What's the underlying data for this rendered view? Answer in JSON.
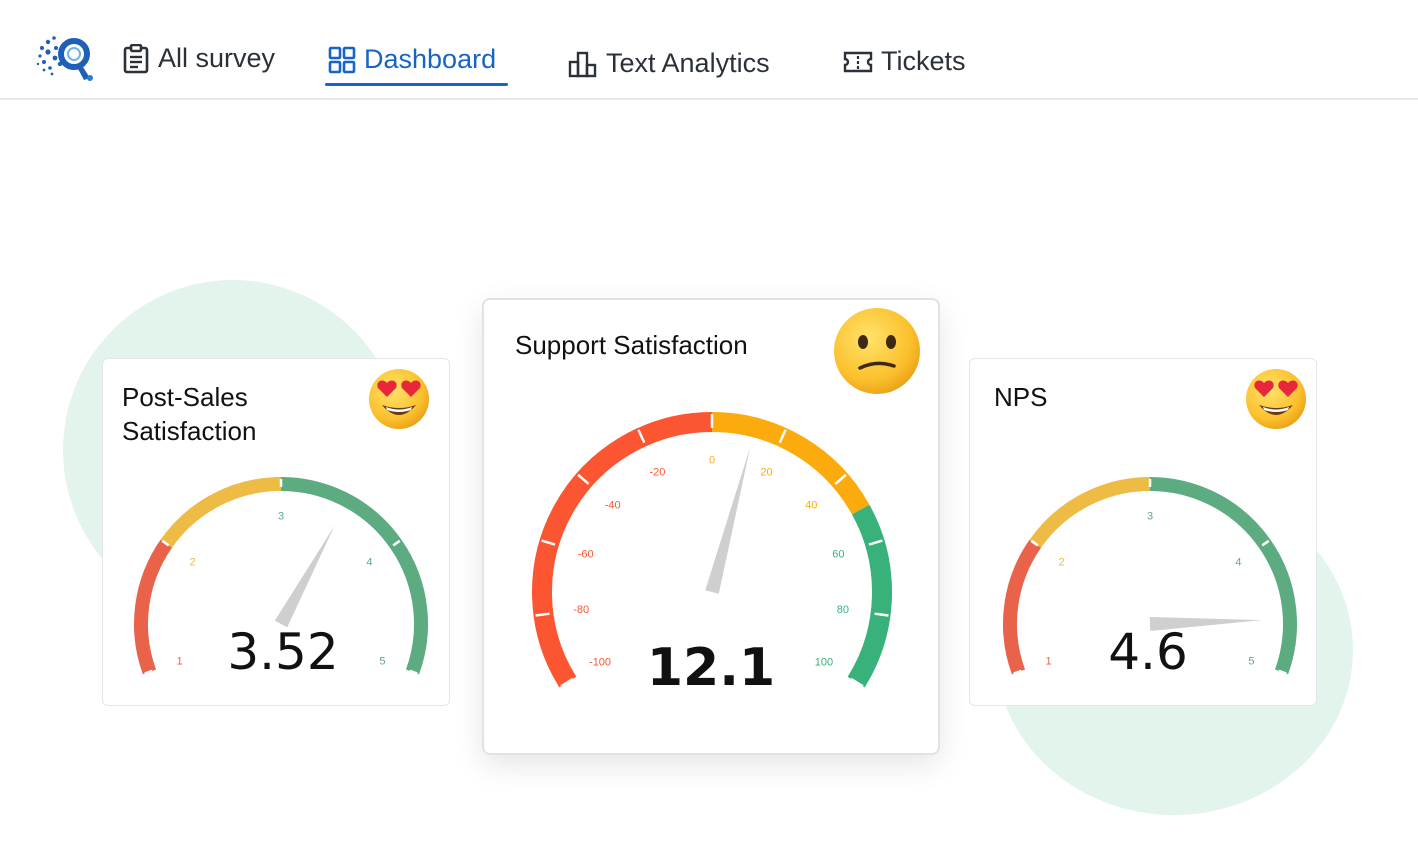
{
  "nav": {
    "items": [
      {
        "label": "All survey",
        "icon": "clipboard-icon",
        "active": false
      },
      {
        "label": "Dashboard",
        "icon": "grid-icon",
        "active": true
      },
      {
        "label": "Text Analytics",
        "icon": "bar-chart-icon",
        "active": false
      },
      {
        "label": "Tickets",
        "icon": "ticket-icon",
        "active": false
      }
    ]
  },
  "cards": [
    {
      "title": "Post-Sales\nSatisfaction",
      "value": "3.52",
      "emoji": "heart-eyes-emoji",
      "scale": {
        "min": 1,
        "max": 5,
        "ticks": [
          "1",
          "2",
          "3",
          "4",
          "5"
        ]
      },
      "needle_value": 3.52,
      "colors": {
        "low": "#e8634a",
        "mid": "#eebb44",
        "high": "#5dab80"
      }
    },
    {
      "title": "Support Satisfaction",
      "value": "12.1",
      "emoji": "confused-emoji",
      "scale": {
        "min": -100,
        "max": 100,
        "ticks": [
          "-100",
          "-80",
          "-60",
          "-40",
          "-20",
          "0",
          "20",
          "40",
          "60",
          "80",
          "100"
        ]
      },
      "needle_value": 12.1,
      "colors": {
        "low": "#fb5631",
        "mid": "#fbab0e",
        "high": "#38b27a"
      }
    },
    {
      "title": "NPS",
      "value": "4.6",
      "emoji": "heart-eyes-emoji",
      "scale": {
        "min": 1,
        "max": 5,
        "ticks": [
          "1",
          "2",
          "3",
          "4",
          "5"
        ]
      },
      "needle_value": 4.6,
      "colors": {
        "low": "#e8634a",
        "mid": "#eebb44",
        "high": "#5dab80"
      }
    }
  ]
}
